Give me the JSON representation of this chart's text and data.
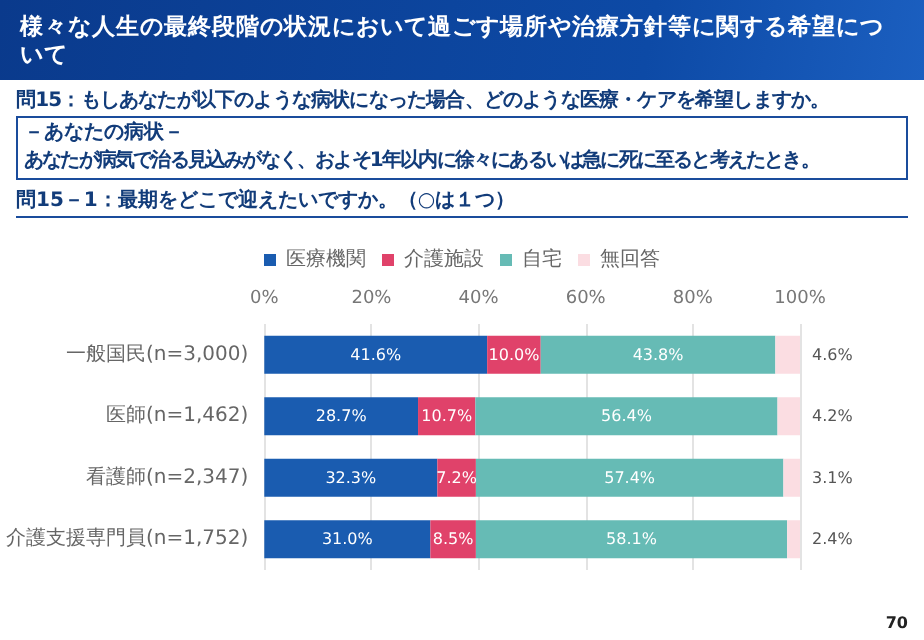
{
  "chart_data": {
    "type": "bar",
    "orientation": "horizontal",
    "stacked": true,
    "title": "様々な人生の最終段階の状況において過ごす場所や治療方針等に関する希望について",
    "subtitle": "問15：もしあなたが以下のような病状になった場合、どのような医療・ケアを希望しますか。",
    "annotations": [
      "－あなたの病状－",
      "あなたが病気で治る見込みがなく、およそ1年以内に徐々にあるいは急に死に至ると考えたとき。",
      "問15－1：最期をどこで迎えたいですか。（○は１つ）",
      "70"
    ],
    "categories": [
      "一般国民(n=3,000)",
      "医師(n=1,462)",
      "看護師(n=2,347)",
      "介護支援専門員(n=1,752)"
    ],
    "series": [
      {
        "name": "医療機関",
        "color": "#1a5cb0",
        "values": [
          41.6,
          28.7,
          32.3,
          31.0
        ],
        "value_labels": [
          "41.6%",
          "28.7%",
          "32.3%",
          "31.0%"
        ]
      },
      {
        "name": "介護施設",
        "color": "#e0426a",
        "values": [
          10.0,
          10.7,
          7.2,
          8.5
        ],
        "value_labels": [
          "10.0%",
          "10.7%",
          "7.2%",
          "8.5%"
        ]
      },
      {
        "name": "自宅",
        "color": "#66bbb5",
        "values": [
          43.8,
          56.4,
          57.4,
          58.1
        ],
        "value_labels": [
          "43.8%",
          "56.4%",
          "57.4%",
          "58.1%"
        ]
      },
      {
        "name": "無回答",
        "color": "#fbdde2",
        "values": [
          4.6,
          4.2,
          3.1,
          2.4
        ],
        "value_labels": [
          "4.6%",
          "4.2%",
          "3.1%",
          "2.4%"
        ]
      }
    ],
    "xlim": [
      0,
      100
    ],
    "xticks": [
      {
        "value": 0,
        "label": "0%"
      },
      {
        "value": 20,
        "label": "20%"
      },
      {
        "value": 40,
        "label": "40%"
      },
      {
        "value": 60,
        "label": "60%"
      },
      {
        "value": 80,
        "label": "80%"
      },
      {
        "value": 100,
        "label": "100%"
      }
    ],
    "grid": "x",
    "legend": "top",
    "data_labels": true
  }
}
